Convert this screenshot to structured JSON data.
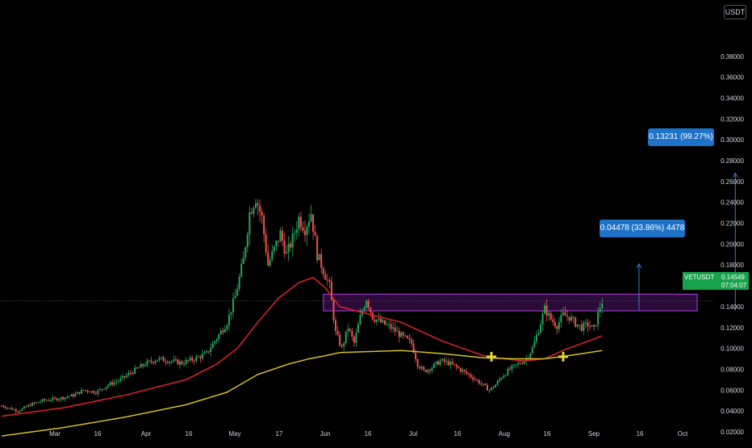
{
  "currency_button": "USDT",
  "chart_data": {
    "type": "candlestick",
    "symbol": "VETUSDT",
    "last_price": "0.14549",
    "countdown": "07:04:07",
    "y_axis": {
      "ticks": [
        "0.38000",
        "0.36000",
        "0.34000",
        "0.32000",
        "0.30000",
        "0.28000",
        "0.26000",
        "0.24000",
        "0.22000",
        "0.20000",
        "0.18000",
        "0.16000",
        "0.14000",
        "0.12000",
        "0.10000",
        "0.08000",
        "0.06000",
        "0.04000",
        "0.02000"
      ],
      "top_partial": "0.",
      "range": [
        0.004,
        0.414
      ]
    },
    "x_axis": {
      "ticks": [
        "Mar",
        "16",
        "Apr",
        "16",
        "May",
        "17",
        "Jun",
        "16",
        "Jul",
        "16",
        "Aug",
        "16",
        "Sep",
        "16",
        "Oct"
      ]
    },
    "close_path": [
      [
        0,
        0.045
      ],
      [
        8,
        0.04
      ],
      [
        14,
        0.046
      ],
      [
        20,
        0.05
      ],
      [
        28,
        0.052
      ],
      [
        35,
        0.055
      ],
      [
        40,
        0.06
      ],
      [
        46,
        0.058
      ],
      [
        52,
        0.065
      ],
      [
        58,
        0.07
      ],
      [
        64,
        0.078
      ],
      [
        70,
        0.085
      ],
      [
        76,
        0.09
      ],
      [
        82,
        0.088
      ],
      [
        88,
        0.086
      ],
      [
        94,
        0.09
      ],
      [
        100,
        0.095
      ],
      [
        105,
        0.11
      ],
      [
        110,
        0.125
      ],
      [
        114,
        0.15
      ],
      [
        118,
        0.185
      ],
      [
        121,
        0.23
      ],
      [
        124,
        0.245
      ],
      [
        127,
        0.225
      ],
      [
        130,
        0.18
      ],
      [
        133,
        0.195
      ],
      [
        136,
        0.21
      ],
      [
        139,
        0.19
      ],
      [
        142,
        0.205
      ],
      [
        145,
        0.225
      ],
      [
        148,
        0.215
      ],
      [
        151,
        0.23
      ],
      [
        154,
        0.19
      ],
      [
        157,
        0.175
      ],
      [
        160,
        0.16
      ],
      [
        163,
        0.115
      ],
      [
        166,
        0.1
      ],
      [
        169,
        0.12
      ],
      [
        172,
        0.105
      ],
      [
        175,
        0.13
      ],
      [
        178,
        0.148
      ],
      [
        181,
        0.13
      ],
      [
        185,
        0.125
      ],
      [
        190,
        0.12
      ],
      [
        195,
        0.112
      ],
      [
        200,
        0.105
      ],
      [
        203,
        0.085
      ],
      [
        206,
        0.078
      ],
      [
        210,
        0.082
      ],
      [
        214,
        0.088
      ],
      [
        218,
        0.086
      ],
      [
        222,
        0.082
      ],
      [
        226,
        0.077
      ],
      [
        230,
        0.072
      ],
      [
        234,
        0.066
      ],
      [
        238,
        0.06
      ],
      [
        241,
        0.065
      ],
      [
        244,
        0.073
      ],
      [
        248,
        0.08
      ],
      [
        252,
        0.085
      ],
      [
        256,
        0.09
      ],
      [
        259,
        0.1
      ],
      [
        262,
        0.118
      ],
      [
        265,
        0.138
      ],
      [
        268,
        0.128
      ],
      [
        271,
        0.122
      ],
      [
        274,
        0.132
      ],
      [
        277,
        0.13
      ],
      [
        280,
        0.124
      ],
      [
        283,
        0.12
      ],
      [
        286,
        0.123
      ],
      [
        289,
        0.118
      ],
      [
        292,
        0.14
      ],
      [
        293,
        0.145
      ]
    ],
    "series": [
      {
        "name": "",
        "color": "#e0222a",
        "points": [
          [
            0,
            0.035
          ],
          [
            30,
            0.043
          ],
          [
            60,
            0.055
          ],
          [
            90,
            0.07
          ],
          [
            105,
            0.085
          ],
          [
            115,
            0.1
          ],
          [
            125,
            0.125
          ],
          [
            135,
            0.148
          ],
          [
            145,
            0.163
          ],
          [
            152,
            0.168
          ],
          [
            158,
            0.158
          ],
          [
            165,
            0.14
          ],
          [
            175,
            0.135
          ],
          [
            185,
            0.13
          ],
          [
            195,
            0.125
          ],
          [
            205,
            0.116
          ],
          [
            215,
            0.107
          ],
          [
            225,
            0.1
          ],
          [
            235,
            0.093
          ],
          [
            245,
            0.09
          ],
          [
            255,
            0.088
          ],
          [
            265,
            0.09
          ],
          [
            275,
            0.099
          ],
          [
            285,
            0.106
          ],
          [
            293,
            0.112
          ]
        ]
      },
      {
        "name": "",
        "color": "#d4c01e",
        "points": [
          [
            0,
            0.016
          ],
          [
            30,
            0.024
          ],
          [
            60,
            0.034
          ],
          [
            90,
            0.046
          ],
          [
            110,
            0.058
          ],
          [
            125,
            0.075
          ],
          [
            140,
            0.085
          ],
          [
            150,
            0.09
          ],
          [
            158,
            0.093
          ],
          [
            165,
            0.096
          ],
          [
            180,
            0.097
          ],
          [
            195,
            0.098
          ],
          [
            215,
            0.095
          ],
          [
            235,
            0.091
          ],
          [
            250,
            0.09
          ],
          [
            265,
            0.09
          ],
          [
            280,
            0.094
          ],
          [
            293,
            0.098
          ]
        ]
      }
    ],
    "resistance_zone": {
      "low": 0.136,
      "high": 0.152,
      "start_day": 157,
      "end_day": 300
    },
    "markers": [
      {
        "day": 239,
        "value": 0.092
      },
      {
        "day": 274,
        "value": 0.092
      }
    ],
    "projections": [
      {
        "label": "0.04478 (33.86%) 4478",
        "from": 0.136,
        "to": 0.181,
        "day": 311
      },
      {
        "label": "0.13231 (99.27%)",
        "from": 0.136,
        "to": 0.268,
        "day": 358
      }
    ]
  }
}
